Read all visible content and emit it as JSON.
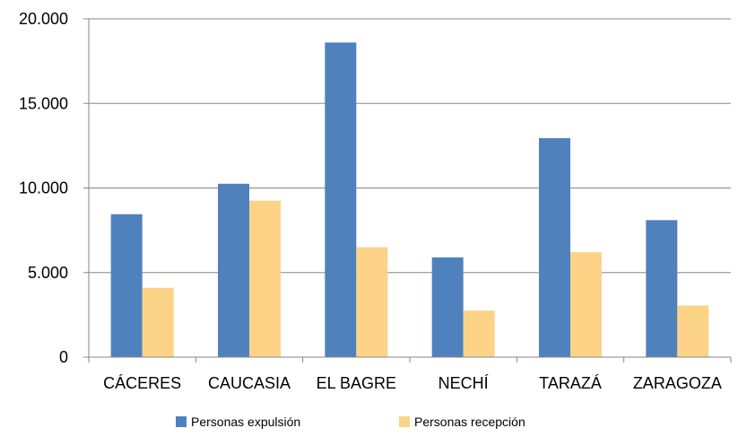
{
  "chart_data": {
    "type": "bar",
    "categories": [
      "CÁCERES",
      "CAUCASIA",
      "EL BAGRE",
      "NECHÍ",
      "TARAZÁ",
      "ZARAGOZA"
    ],
    "series": [
      {
        "name": "Personas expulsión",
        "values": [
          8450,
          10250,
          18600,
          5900,
          12950,
          8100
        ],
        "color": "#4f81bd"
      },
      {
        "name": "Personas recepción",
        "values": [
          4100,
          9250,
          6500,
          2750,
          6200,
          3050
        ],
        "color": "#fdd387"
      }
    ],
    "yticks": [
      "0",
      "5.000",
      "10.000",
      "15.000",
      "20.000"
    ],
    "ytick_values": [
      0,
      5000,
      10000,
      15000,
      20000
    ],
    "ylim": [
      0,
      20000
    ],
    "grid": true,
    "legend": "bottom"
  }
}
